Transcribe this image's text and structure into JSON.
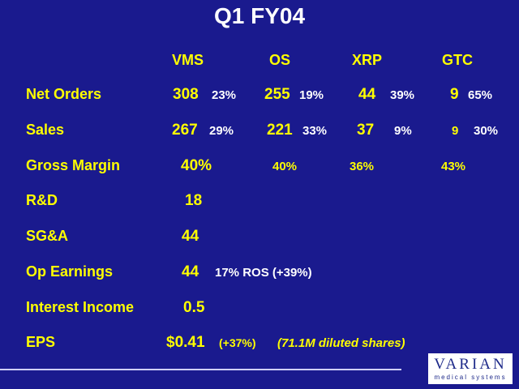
{
  "title": "Q1 FY04",
  "columns": [
    "VMS",
    "OS",
    "XRP",
    "GTC"
  ],
  "rows": {
    "net_orders": {
      "label": "Net Orders",
      "vms": {
        "value": "308",
        "pct": "23%"
      },
      "os": {
        "value": "255",
        "pct": "19%"
      },
      "xrp": {
        "value": "44",
        "pct": "39%"
      },
      "gtc": {
        "value": "9",
        "pct": "65%"
      }
    },
    "sales": {
      "label": "Sales",
      "vms": {
        "value": "267",
        "pct": "29%"
      },
      "os": {
        "value": "221",
        "pct": "33%"
      },
      "xrp": {
        "value": "37",
        "pct": "9%"
      },
      "gtc": {
        "value": "9",
        "pct": "30%"
      }
    },
    "gross_margin": {
      "label": "Gross Margin",
      "vms": "40%",
      "os": "40%",
      "xrp": "36%",
      "gtc": "43%"
    },
    "rd": {
      "label": "R&D",
      "value": "18"
    },
    "sga": {
      "label": "SG&A",
      "value": "44"
    },
    "op_earnings": {
      "label": "Op Earnings",
      "value": "44",
      "note": "17% ROS (+39%)"
    },
    "interest_income": {
      "label": "Interest Income",
      "value": "0.5"
    },
    "eps": {
      "label": "EPS",
      "value": "$0.41",
      "change": "(+37%)",
      "shares": "(71.1M diluted shares)"
    }
  },
  "logo": {
    "main": "VARIAN",
    "sub": "medical systems"
  },
  "colors": {
    "background": "#1a1a8e",
    "accent": "#ffff00",
    "text": "#ffffff"
  }
}
